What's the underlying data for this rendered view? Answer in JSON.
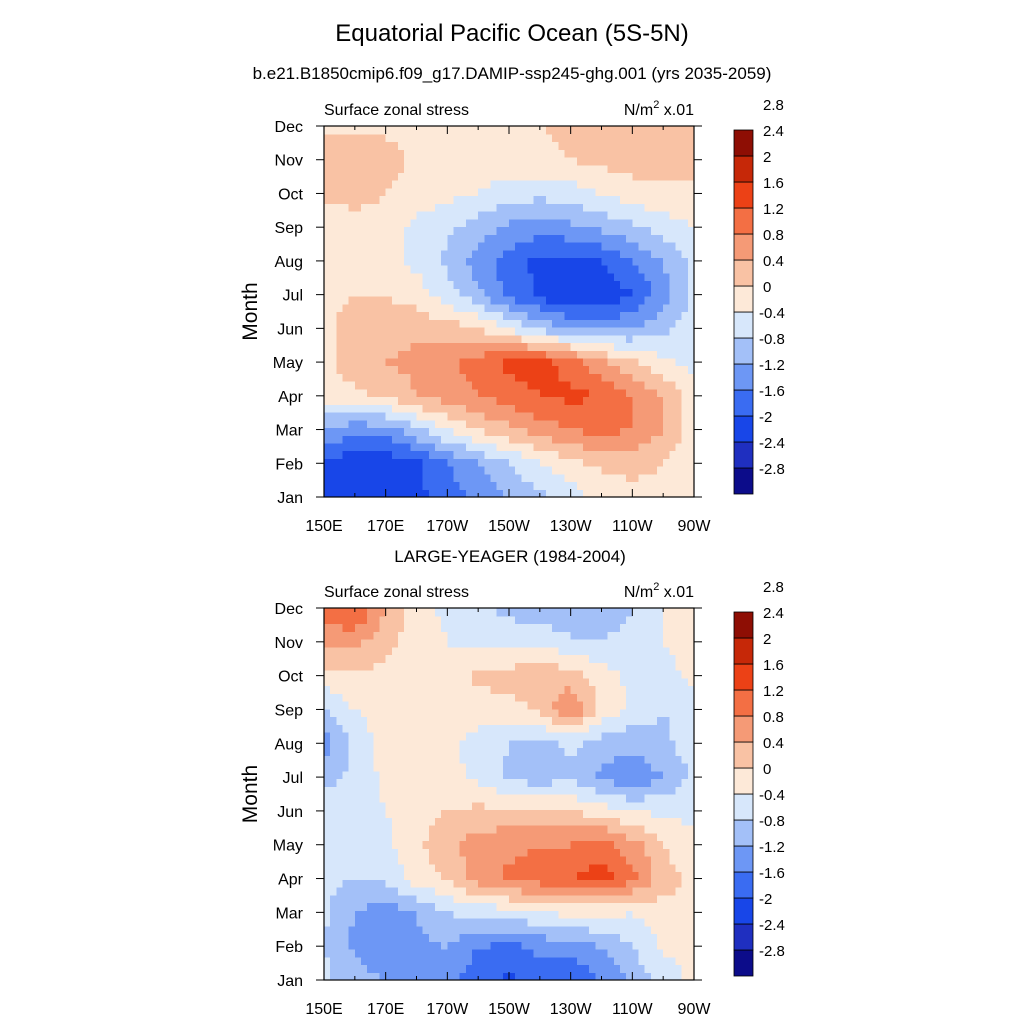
{
  "title": "Equatorial Pacific Ocean (5S-5N)",
  "subtitle": "b.e21.B1850cmip6.f09_g17.DAMIP-ssp245-ghg.001 (yrs 2035-2059)",
  "palette": {
    "levels": [
      "-2.8",
      "-2.4",
      "-2",
      "-1.6",
      "-1.2",
      "-0.8",
      "-0.4",
      "0",
      "0.4",
      "0.8",
      "1.2",
      "1.6",
      "2",
      "2.4",
      "2.8"
    ],
    "colors": [
      "#0c0c8a",
      "#1f2fc0",
      "#1846e8",
      "#3a6cf2",
      "#6d97f5",
      "#a3c0f8",
      "#d7e7fb",
      "#fde9d8",
      "#f9c2a4",
      "#f59a76",
      "#f36f44",
      "#ec4116",
      "#c62808",
      "#8e0e04"
    ]
  },
  "chart_data": [
    {
      "type": "heatmap",
      "title": "",
      "left_string": "Surface zonal stress",
      "units": "N/m",
      "units_sup": "2",
      "units_suffix": " x.01",
      "xlabel": "",
      "ylabel": "Month",
      "x_ticks": [
        "150E",
        "170E",
        "170W",
        "150W",
        "130W",
        "110W",
        "90W"
      ],
      "y_ticks": [
        "Jan",
        "Feb",
        "Mar",
        "Apr",
        "May",
        "Jun",
        "Jul",
        "Aug",
        "Sep",
        "Oct",
        "Nov",
        "Dec"
      ],
      "xlim": [
        150,
        270
      ],
      "ylim": [
        0,
        11
      ],
      "x": [
        150,
        160,
        170,
        180,
        190,
        200,
        210,
        220,
        230,
        240,
        250,
        260,
        270
      ],
      "z": [
        [
          -1.7,
          -1.9,
          -1.9,
          -1.7,
          -1.4,
          -1.1,
          -0.8,
          -0.5,
          -0.2,
          0.1,
          0.3,
          0.3,
          0.1
        ],
        [
          -1.6,
          -1.9,
          -1.9,
          -1.7,
          -1.2,
          -0.8,
          -0.4,
          0.0,
          0.3,
          0.5,
          0.5,
          0.4,
          0.1
        ],
        [
          -0.8,
          -1.1,
          -1.0,
          -0.5,
          0.0,
          0.4,
          0.7,
          1.0,
          1.2,
          1.3,
          1.2,
          0.8,
          0.2
        ],
        [
          0.2,
          0.3,
          0.5,
          0.8,
          1.0,
          1.2,
          1.4,
          1.6,
          1.7,
          1.6,
          1.2,
          0.8,
          0.2
        ],
        [
          0.3,
          0.6,
          0.8,
          0.9,
          1.1,
          1.4,
          1.7,
          1.8,
          1.4,
          0.9,
          0.5,
          0.1,
          -0.1
        ],
        [
          0.3,
          0.6,
          0.7,
          0.7,
          0.6,
          0.4,
          0.0,
          -0.5,
          -0.8,
          -0.9,
          -0.8,
          -0.5,
          -0.2
        ],
        [
          0.3,
          0.4,
          0.4,
          0.2,
          -0.2,
          -0.7,
          -1.3,
          -1.7,
          -2.0,
          -2.0,
          -1.6,
          -1.0,
          -0.3
        ],
        [
          0.2,
          0.3,
          0.2,
          -0.1,
          -0.5,
          -1.0,
          -1.4,
          -1.7,
          -1.8,
          -1.6,
          -1.2,
          -0.8,
          -0.3
        ],
        [
          0.0,
          0.2,
          0.1,
          -0.1,
          -0.3,
          -0.6,
          -0.9,
          -1.0,
          -0.9,
          -0.7,
          -0.5,
          -0.2,
          0.0
        ],
        [
          0.5,
          0.6,
          0.4,
          0.2,
          0.1,
          0.0,
          -0.2,
          -0.3,
          -0.2,
          0.0,
          0.2,
          0.3,
          0.3
        ],
        [
          0.7,
          0.8,
          0.6,
          0.3,
          0.2,
          0.2,
          0.2,
          0.3,
          0.4,
          0.5,
          0.6,
          0.6,
          0.5
        ],
        [
          0.3,
          0.3,
          0.3,
          0.2,
          0.2,
          0.2,
          0.3,
          0.4,
          0.5,
          0.6,
          0.6,
          0.6,
          0.5
        ]
      ]
    },
    {
      "type": "heatmap",
      "title": "LARGE-YEAGER (1984-2004)",
      "left_string": "Surface zonal stress",
      "units": "N/m",
      "units_sup": "2",
      "units_suffix": " x.01",
      "xlabel": "",
      "ylabel": "Month",
      "x_ticks": [
        "150E",
        "170E",
        "170W",
        "150W",
        "130W",
        "110W",
        "90W"
      ],
      "y_ticks": [
        "Jan",
        "Feb",
        "Mar",
        "Apr",
        "May",
        "Jun",
        "Jul",
        "Aug",
        "Sep",
        "Oct",
        "Nov",
        "Dec"
      ],
      "xlim": [
        150,
        270
      ],
      "ylim": [
        0,
        11
      ],
      "x": [
        150,
        160,
        170,
        180,
        190,
        200,
        210,
        220,
        230,
        240,
        250,
        260,
        270
      ],
      "z": [
        [
          -0.3,
          -0.6,
          -0.8,
          -0.9,
          -1.1,
          -1.4,
          -1.7,
          -1.4,
          -1.6,
          -1.2,
          -0.7,
          -0.3,
          0.1
        ],
        [
          -0.4,
          -0.9,
          -1.1,
          -0.9,
          -0.8,
          -1.2,
          -1.3,
          -1.1,
          -1.0,
          -0.8,
          -0.4,
          0.1,
          0.2
        ],
        [
          -0.3,
          -0.8,
          -1.0,
          -0.8,
          -0.4,
          -0.3,
          -0.2,
          0.0,
          0.1,
          0.1,
          0.0,
          0.2,
          0.3
        ],
        [
          -0.3,
          -0.4,
          -0.3,
          0.2,
          0.4,
          1.0,
          1.3,
          1.4,
          1.6,
          1.8,
          1.3,
          0.6,
          0.3
        ],
        [
          -0.2,
          -0.2,
          -0.1,
          0.3,
          0.7,
          1.0,
          1.1,
          1.2,
          1.2,
          1.4,
          1.0,
          0.4,
          0.1
        ],
        [
          -0.2,
          -0.2,
          0.0,
          0.2,
          0.4,
          0.5,
          0.5,
          0.5,
          0.4,
          0.2,
          0.0,
          -0.1,
          -0.1
        ],
        [
          -0.5,
          -0.3,
          0.1,
          0.2,
          0.2,
          -0.1,
          -0.5,
          -0.6,
          -0.5,
          -0.9,
          -1.1,
          -0.8,
          -0.3
        ],
        [
          -1.0,
          -0.3,
          0.2,
          0.3,
          0.1,
          -0.2,
          -0.4,
          -0.5,
          -0.3,
          -0.6,
          -0.7,
          -0.5,
          -0.2
        ],
        [
          -0.4,
          0.0,
          0.2,
          0.3,
          0.3,
          0.2,
          0.2,
          0.5,
          1.2,
          0.3,
          -0.1,
          -0.4,
          -0.2
        ],
        [
          0.2,
          0.3,
          0.3,
          0.2,
          0.2,
          0.5,
          0.6,
          0.7,
          0.6,
          0.2,
          -0.1,
          -0.2,
          0.1
        ],
        [
          1.0,
          0.9,
          0.5,
          0.2,
          0.0,
          -0.1,
          -0.2,
          -0.1,
          -0.3,
          -0.4,
          -0.2,
          0.0,
          0.3
        ],
        [
          1.3,
          1.7,
          0.8,
          0.2,
          -0.1,
          -0.3,
          -0.5,
          -0.6,
          -0.8,
          -0.7,
          -0.4,
          0.0,
          0.2
        ]
      ]
    }
  ]
}
